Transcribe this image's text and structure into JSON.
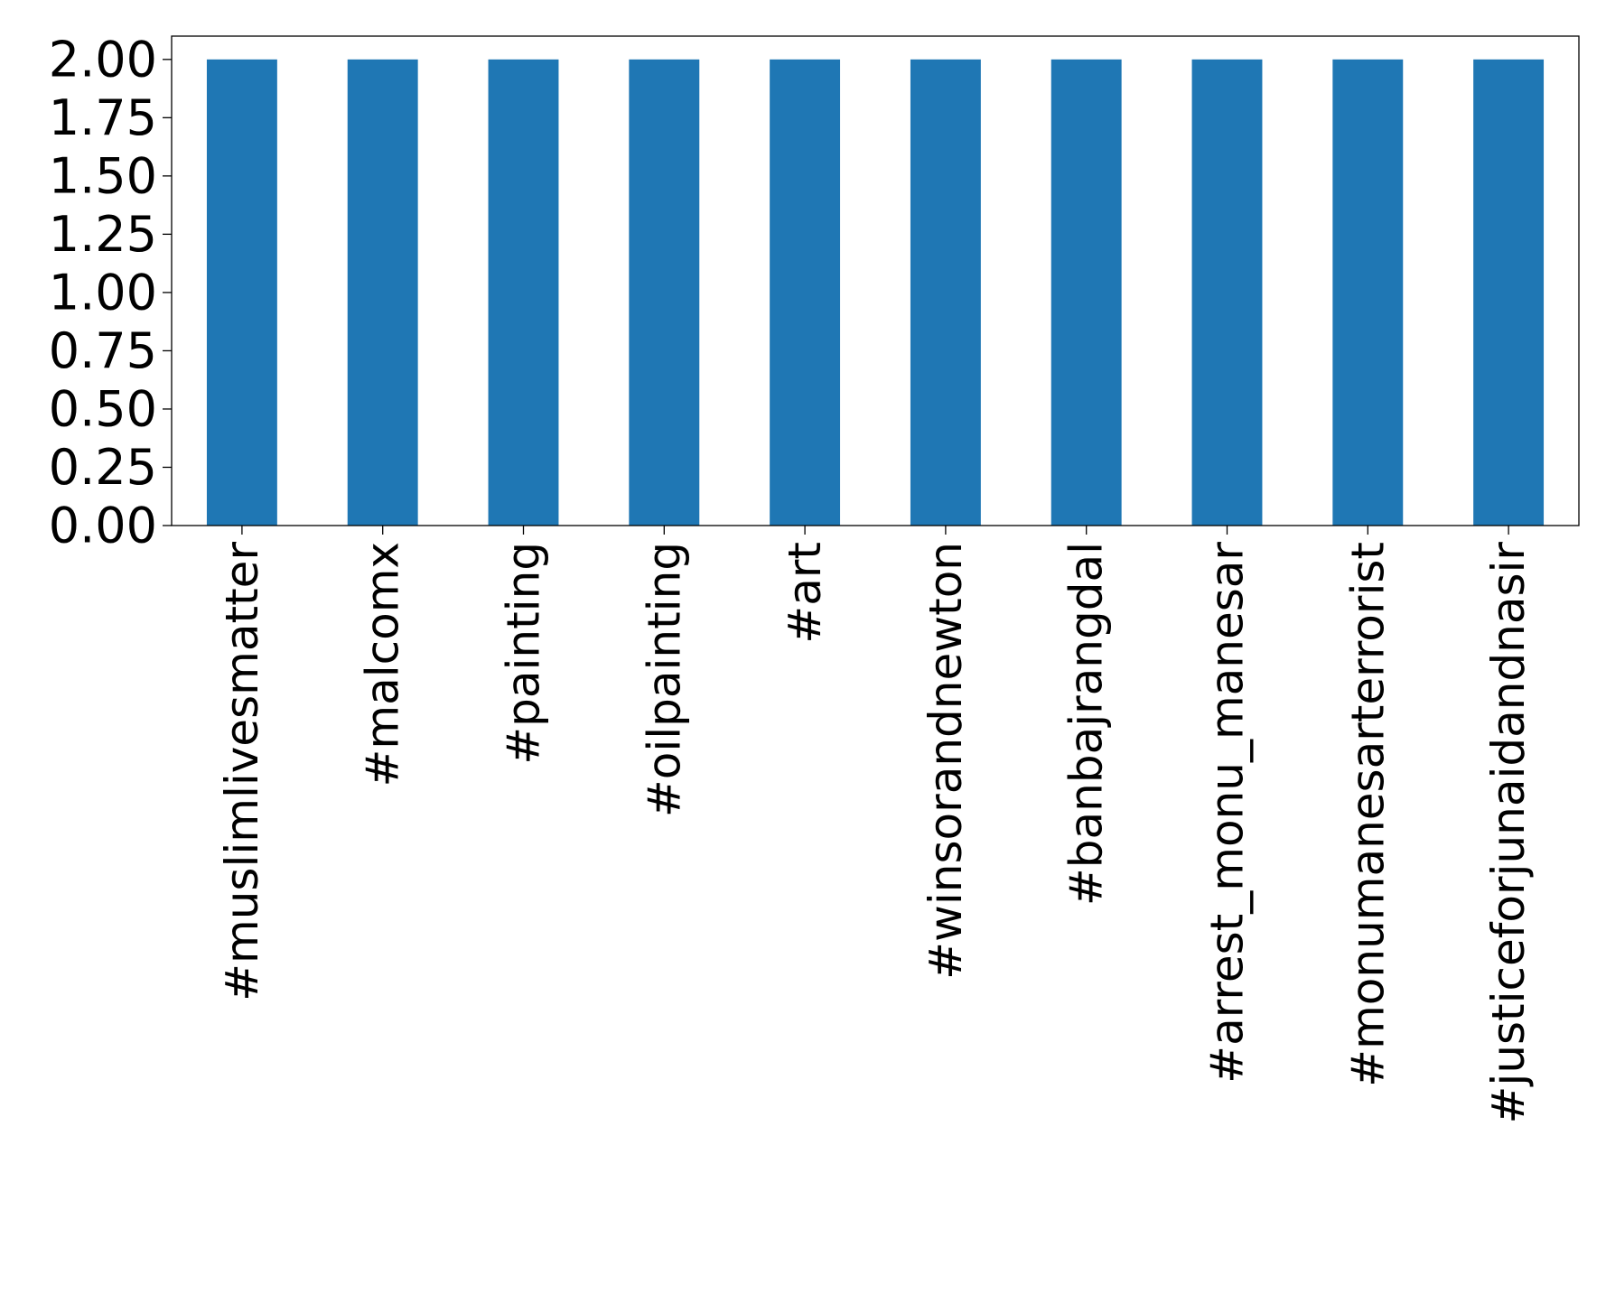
{
  "chart_data": {
    "type": "bar",
    "title": "",
    "xlabel": "",
    "ylabel": "",
    "categories": [
      "#muslimlivesmatter",
      "#malcomx",
      "#painting",
      "#oilpainting",
      "#art",
      "#winsorandnewton",
      "#banbajrangdal",
      "#arrest_monu_manesar",
      "#monumanesarterrorist",
      "#justiceforjunaidandnasir"
    ],
    "values": [
      2,
      2,
      2,
      2,
      2,
      2,
      2,
      2,
      2,
      2
    ],
    "ylim": [
      0,
      2.1
    ],
    "yticks": [
      "0.00",
      "0.25",
      "0.50",
      "0.75",
      "1.00",
      "1.25",
      "1.50",
      "1.75",
      "2.00"
    ],
    "bar_color": "#1f77b4",
    "grid": false,
    "legend": "none"
  }
}
